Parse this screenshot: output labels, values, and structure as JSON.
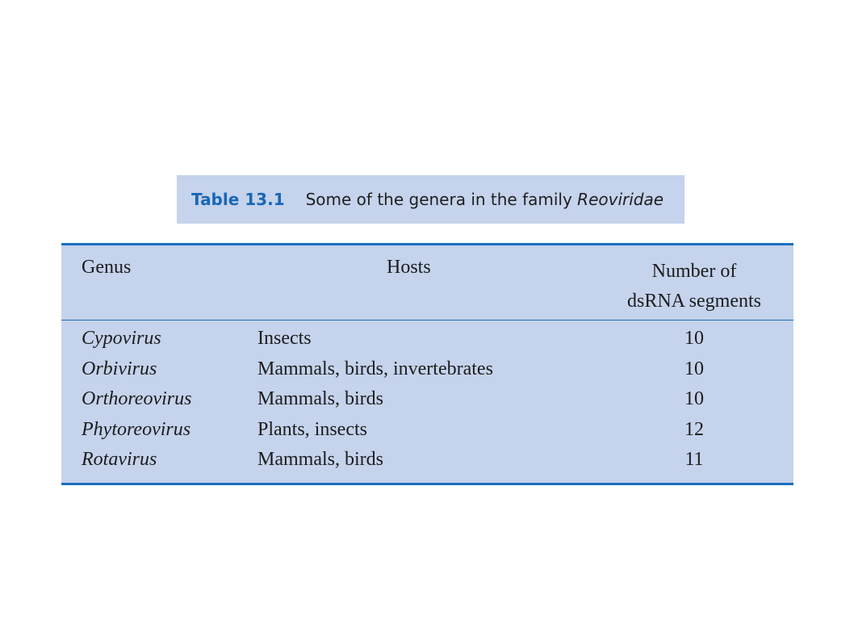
{
  "caption": {
    "label": "Table 13.1",
    "text": "Some of the genera in the family ",
    "italic": "Reoviridae"
  },
  "table": {
    "headers": {
      "genus": "Genus",
      "hosts": "Hosts",
      "number_line1": "Number of",
      "number_line2": "dsRNA segments"
    },
    "rows": [
      {
        "genus": "Cypovirus",
        "hosts": "Insects",
        "segments": "10"
      },
      {
        "genus": "Orbivirus",
        "hosts": "Mammals, birds, invertebrates",
        "segments": "10"
      },
      {
        "genus": "Orthoreovirus",
        "hosts": "Mammals, birds",
        "segments": "10"
      },
      {
        "genus": "Phytoreovirus",
        "hosts": "Plants, insects",
        "segments": "12"
      },
      {
        "genus": "Rotavirus",
        "hosts": "Mammals, birds",
        "segments": "11"
      }
    ]
  },
  "colors": {
    "panel": "#c5d3ec",
    "rule": "#1a6fc0",
    "label": "#1a67b5"
  }
}
